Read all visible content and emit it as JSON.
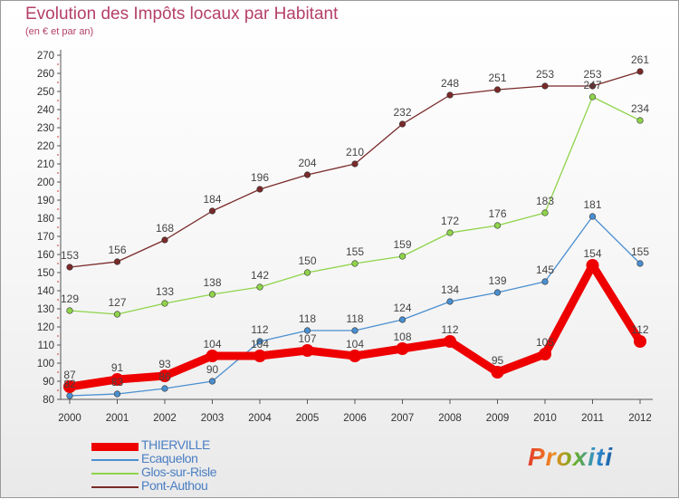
{
  "chart_data": {
    "type": "line",
    "title": "Evolution des Impôts locaux par Habitant",
    "subtitle": "(en € et par an)",
    "categories": [
      "2000",
      "2001",
      "2002",
      "2003",
      "2004",
      "2005",
      "2006",
      "2007",
      "2008",
      "2009",
      "2010",
      "2011",
      "2012"
    ],
    "ylim": [
      80,
      270
    ],
    "yticks": [
      80,
      90,
      100,
      110,
      120,
      130,
      140,
      150,
      160,
      170,
      180,
      190,
      200,
      210,
      220,
      230,
      240,
      250,
      260,
      270
    ],
    "grid": false,
    "legend_position": "bottom-left",
    "series": [
      {
        "name": "THIERVILLE",
        "color": "#ee0000",
        "emphasis": true,
        "values": [
          87,
          91,
          93,
          104,
          104,
          107,
          104,
          108,
          112,
          95,
          105,
          154,
          112
        ]
      },
      {
        "name": "Ecaquelon",
        "color": "#4a8fd0",
        "values": [
          82,
          83,
          86,
          90,
          112,
          118,
          118,
          124,
          134,
          139,
          145,
          181,
          155
        ]
      },
      {
        "name": "Glos-sur-Risle",
        "color": "#8fd44a",
        "values": [
          129,
          127,
          133,
          138,
          142,
          150,
          155,
          159,
          172,
          176,
          183,
          247,
          234
        ]
      },
      {
        "name": "Pont-Authou",
        "color": "#7a2a2a",
        "values": [
          153,
          156,
          168,
          184,
          196,
          204,
          210,
          232,
          248,
          251,
          253,
          253,
          261
        ]
      }
    ]
  },
  "branding": {
    "logo_text": "Proxiti"
  }
}
